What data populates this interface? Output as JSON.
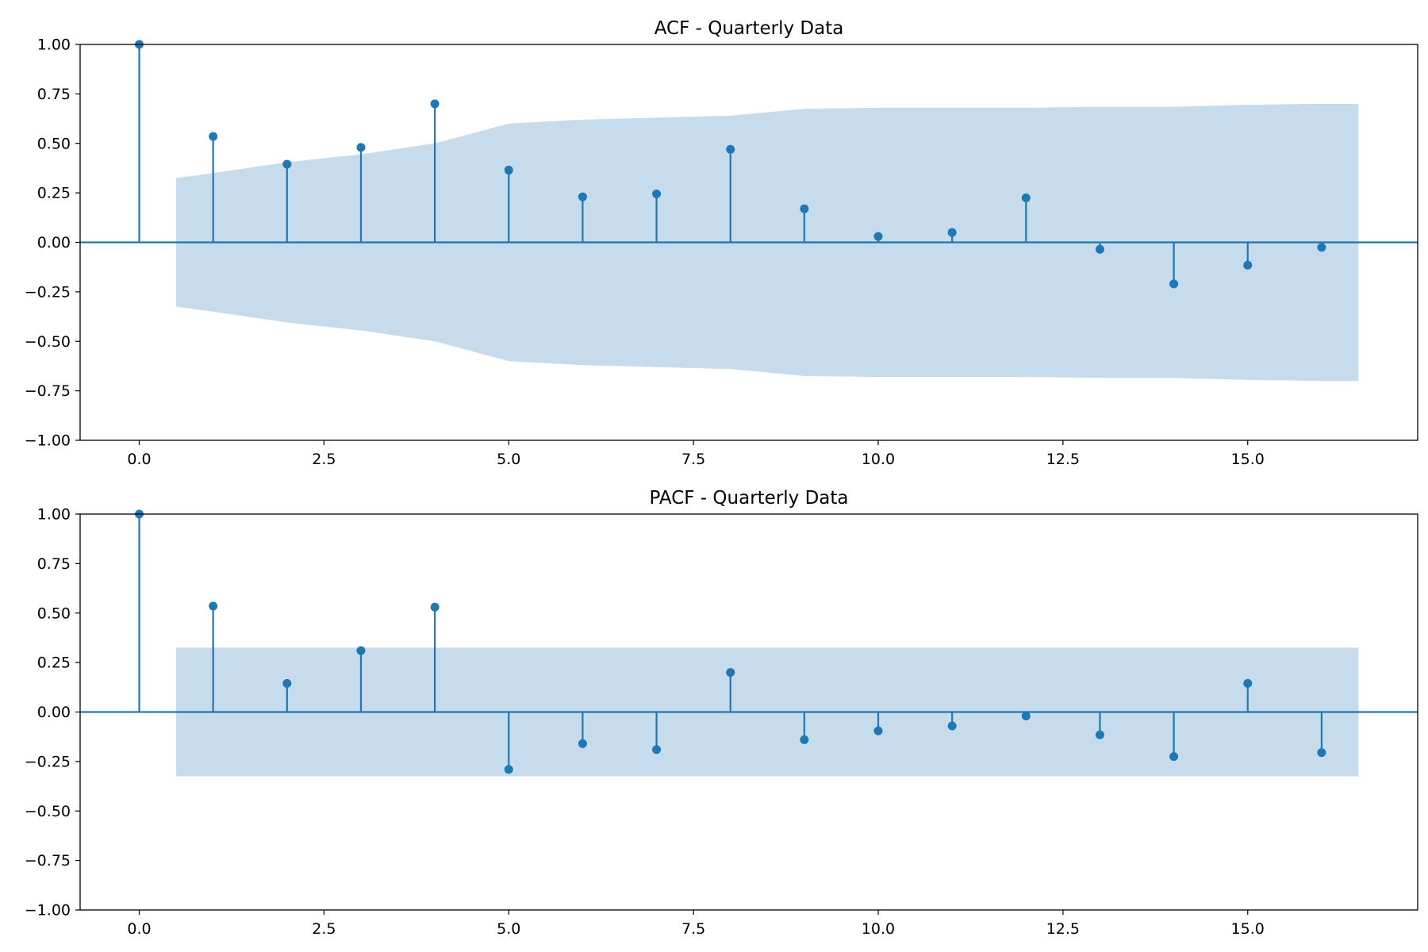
{
  "chart_data": [
    {
      "type": "stem",
      "title": "ACF - Quarterly Data",
      "xlabel": "",
      "ylabel": "",
      "xlim": [
        -0.8,
        17.3
      ],
      "ylim": [
        -1.0,
        1.0
      ],
      "xticks": [
        0.0,
        2.5,
        5.0,
        7.5,
        10.0,
        12.5,
        15.0
      ],
      "xtick_labels": [
        "0.0",
        "2.5",
        "5.0",
        "7.5",
        "10.0",
        "12.5",
        "15.0"
      ],
      "yticks": [
        -1.0,
        -0.75,
        -0.5,
        -0.25,
        0.0,
        0.25,
        0.5,
        0.75,
        1.0
      ],
      "ytick_labels": [
        "−1.00",
        "−0.75",
        "−0.50",
        "−0.25",
        "0.00",
        "0.25",
        "0.50",
        "0.75",
        "1.00"
      ],
      "x": [
        0,
        1,
        2,
        3,
        4,
        5,
        6,
        7,
        8,
        9,
        10,
        11,
        12,
        13,
        14,
        15,
        16
      ],
      "values": [
        1.0,
        0.535,
        0.395,
        0.48,
        0.7,
        0.365,
        0.23,
        0.245,
        0.47,
        0.17,
        0.03,
        0.05,
        0.225,
        -0.035,
        -0.21,
        -0.115,
        -0.025
      ],
      "confidence_band": {
        "x": [
          0.5,
          1,
          2,
          3,
          4,
          5,
          6,
          7,
          8,
          9,
          10,
          11,
          12,
          13,
          14,
          15,
          16,
          16.5
        ],
        "upper": [
          0.325,
          0.35,
          0.405,
          0.445,
          0.5,
          0.6,
          0.62,
          0.63,
          0.64,
          0.675,
          0.68,
          0.68,
          0.68,
          0.685,
          0.685,
          0.695,
          0.7,
          0.7
        ]
      },
      "grid": false
    },
    {
      "type": "stem",
      "title": "PACF - Quarterly Data",
      "xlabel": "",
      "ylabel": "",
      "xlim": [
        -0.8,
        17.3
      ],
      "ylim": [
        -1.0,
        1.0
      ],
      "xticks": [
        0.0,
        2.5,
        5.0,
        7.5,
        10.0,
        12.5,
        15.0
      ],
      "xtick_labels": [
        "0.0",
        "2.5",
        "5.0",
        "7.5",
        "10.0",
        "12.5",
        "15.0"
      ],
      "yticks": [
        -1.0,
        -0.75,
        -0.5,
        -0.25,
        0.0,
        0.25,
        0.5,
        0.75,
        1.0
      ],
      "ytick_labels": [
        "−1.00",
        "−0.75",
        "−0.50",
        "−0.25",
        "0.00",
        "0.25",
        "0.50",
        "0.75",
        "1.00"
      ],
      "x": [
        0,
        1,
        2,
        3,
        4,
        5,
        6,
        7,
        8,
        9,
        10,
        11,
        12,
        13,
        14,
        15,
        16
      ],
      "values": [
        1.0,
        0.535,
        0.145,
        0.31,
        0.53,
        -0.29,
        -0.16,
        -0.19,
        0.2,
        -0.14,
        -0.095,
        -0.07,
        -0.02,
        -0.115,
        -0.225,
        0.145,
        -0.205
      ],
      "confidence_band": {
        "x": [
          0.5,
          16.5
        ],
        "upper": [
          0.325,
          0.325
        ]
      },
      "grid": false
    }
  ],
  "colors": {
    "stem": "#1f77b4",
    "band": "#c6dbec",
    "axes": "#000000"
  }
}
